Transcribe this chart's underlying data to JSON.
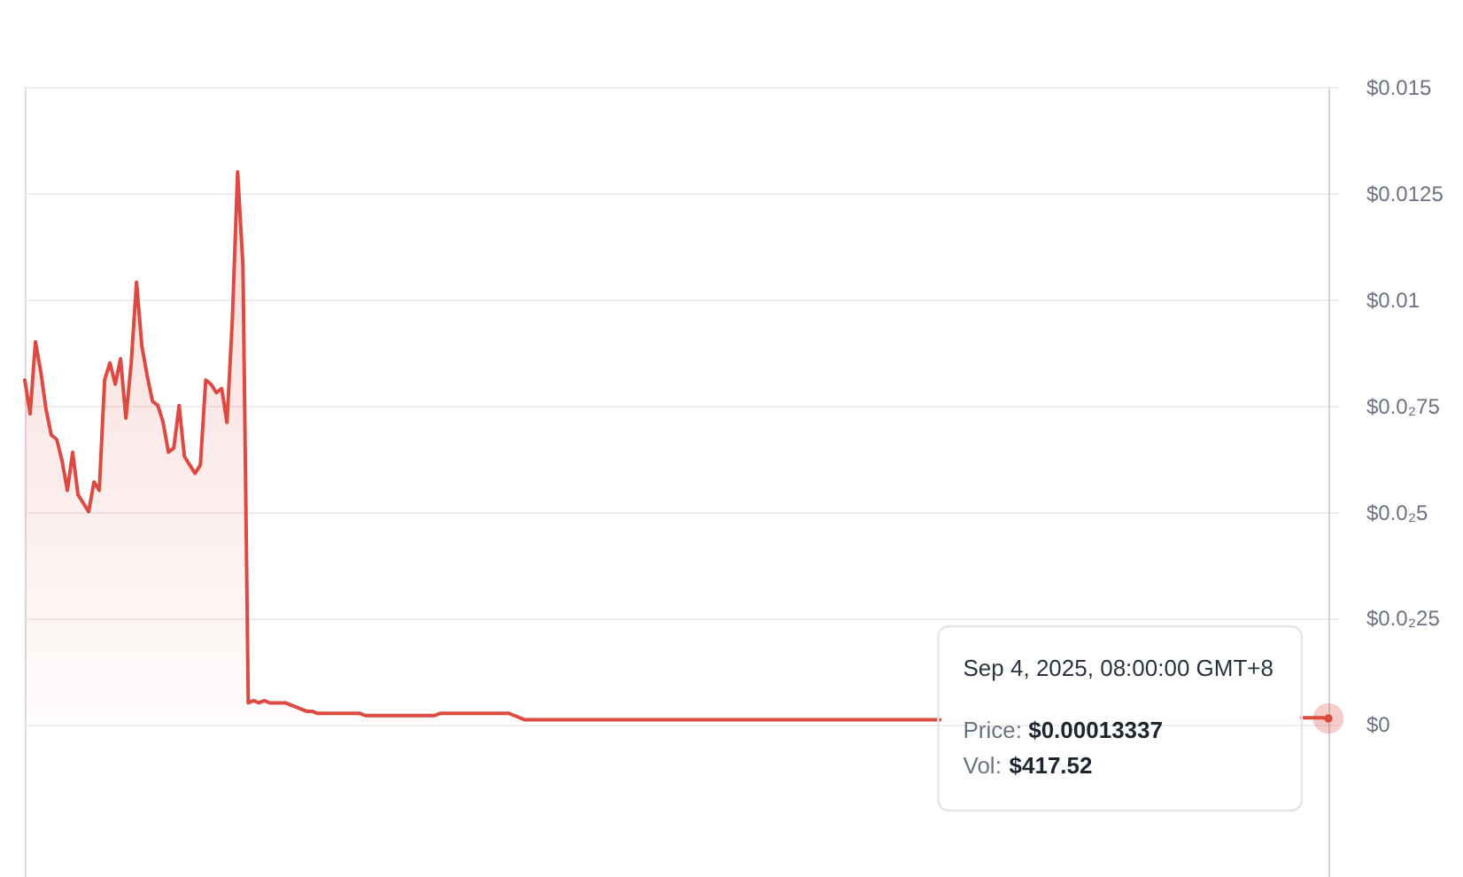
{
  "chart_data": {
    "type": "area",
    "categories": [
      null,
      null,
      null,
      null,
      null,
      null,
      null,
      null,
      null,
      null,
      null,
      null,
      null,
      null,
      null,
      null,
      null,
      null,
      null,
      null,
      null,
      null,
      null,
      null,
      null,
      null,
      null,
      null,
      null,
      null,
      null,
      null,
      null,
      null,
      null,
      null,
      null,
      null,
      null,
      null,
      null,
      null,
      null,
      null,
      null,
      null,
      null,
      null,
      null,
      null,
      null,
      null,
      null,
      null,
      null,
      null,
      null,
      null,
      null,
      null,
      null,
      null,
      null,
      null,
      null,
      null,
      null,
      null,
      null,
      null,
      null,
      null,
      null,
      null,
      null,
      null,
      null,
      null,
      null,
      null,
      null,
      null,
      null,
      null,
      null,
      null,
      null,
      null,
      null,
      null,
      null,
      null,
      null,
      null,
      null,
      null,
      null,
      null,
      null,
      null,
      null,
      null,
      null,
      null,
      null,
      null,
      null,
      null,
      null,
      null,
      null,
      null,
      null,
      null,
      null,
      null,
      null,
      null,
      null,
      null,
      null,
      null,
      null,
      null,
      null,
      null,
      null,
      null,
      null,
      null,
      null,
      null,
      null,
      null,
      null,
      null,
      null,
      null,
      null,
      null,
      null,
      null,
      null,
      null,
      null,
      null,
      null,
      null,
      null,
      null,
      null,
      null,
      null,
      null,
      null,
      null,
      null,
      null,
      null,
      null,
      null,
      null,
      null,
      null,
      null,
      null,
      null,
      null,
      null,
      null,
      null,
      null,
      null,
      null,
      null,
      null,
      null,
      null,
      null,
      null,
      null,
      null,
      null,
      null,
      null,
      null,
      null,
      null,
      null,
      null,
      null,
      null,
      null,
      null,
      null,
      null,
      null,
      null,
      null,
      null,
      null,
      null,
      null,
      null,
      null,
      null,
      null,
      null,
      null,
      null,
      null,
      null,
      null,
      null,
      null,
      null,
      null,
      null,
      null,
      null,
      null,
      null,
      null,
      null,
      null,
      null,
      null,
      null,
      null,
      null,
      null,
      null,
      null,
      null,
      null,
      null,
      null,
      null,
      null,
      null,
      null,
      null,
      null,
      null,
      null,
      null
    ],
    "values": [
      0.0081,
      0.0073,
      0.009,
      0.0083,
      0.0074,
      0.0068,
      0.0067,
      0.0062,
      0.0055,
      0.0064,
      0.0054,
      0.0052,
      0.005,
      0.0057,
      0.0055,
      0.0081,
      0.0085,
      0.008,
      0.0086,
      0.0072,
      0.0085,
      0.0104,
      0.0089,
      0.0082,
      0.0076,
      0.0075,
      0.0071,
      0.0064,
      0.0065,
      0.0075,
      0.0063,
      0.0061,
      0.0059,
      0.0061,
      0.0081,
      0.008,
      0.0078,
      0.0079,
      0.0071,
      0.0095,
      0.013,
      0.0108,
      0.0005,
      0.00055,
      0.0005,
      0.00055,
      0.0005,
      0.0005,
      0.0005,
      0.0005,
      0.00045,
      0.0004,
      0.00035,
      0.0003,
      0.0003,
      0.00025,
      0.00025,
      0.00025,
      0.00025,
      0.00025,
      0.00025,
      0.00025,
      0.00025,
      0.00025,
      0.0002,
      0.0002,
      0.0002,
      0.0002,
      0.0002,
      0.0002,
      0.0002,
      0.0002,
      0.0002,
      0.0002,
      0.0002,
      0.0002,
      0.0002,
      0.0002,
      0.00025,
      0.00025,
      0.00025,
      0.00025,
      0.00025,
      0.00025,
      0.00025,
      0.00025,
      0.00025,
      0.00025,
      0.00025,
      0.00025,
      0.00025,
      0.00025,
      0.0002,
      0.00015,
      0.0001,
      0.0001,
      0.0001,
      0.0001,
      0.0001,
      0.0001,
      0.0001,
      0.0001,
      0.0001,
      0.0001,
      0.0001,
      0.0001,
      0.0001,
      0.0001,
      0.0001,
      0.0001,
      0.0001,
      0.0001,
      0.0001,
      0.0001,
      0.0001,
      0.0001,
      0.0001,
      0.0001,
      0.0001,
      0.0001,
      0.0001,
      0.0001,
      0.0001,
      0.0001,
      0.0001,
      0.0001,
      0.0001,
      0.0001,
      0.0001,
      0.0001,
      0.0001,
      0.0001,
      0.0001,
      0.0001,
      0.0001,
      0.0001,
      0.0001,
      0.0001,
      0.0001,
      0.0001,
      0.0001,
      0.0001,
      0.0001,
      0.0001,
      0.0001,
      0.0001,
      0.0001,
      0.0001,
      0.0001,
      0.0001,
      0.0001,
      0.0001,
      0.0001,
      0.0001,
      0.0001,
      0.0001,
      0.0001,
      0.0001,
      0.0001,
      0.0001,
      0.0001,
      0.0001,
      0.0001,
      0.0001,
      0.0001,
      0.0001,
      0.0001,
      0.0001,
      0.0001,
      0.0001,
      0.0001,
      0.0001,
      0.0001,
      null,
      null,
      null,
      null,
      null,
      null,
      null,
      null,
      null,
      null,
      null,
      null,
      null,
      null,
      null,
      null,
      null,
      null,
      null,
      null,
      null,
      null,
      null,
      null,
      null,
      null,
      null,
      null,
      null,
      null,
      null,
      null,
      null,
      null,
      null,
      null,
      null,
      null,
      null,
      null,
      null,
      null,
      null,
      null,
      null,
      null,
      null,
      null,
      null,
      null,
      null,
      null,
      null,
      null,
      null,
      null,
      null,
      null,
      null,
      null,
      null,
      null,
      null,
      null,
      null,
      null,
      null,
      0.00015,
      0.00015,
      0.00015,
      0.00015,
      0.00015,
      0.00013337
    ],
    "color": "#dc4a41",
    "ylim": [
      -0.0036,
      0.015
    ],
    "yticks": [
      {
        "value": 0,
        "label": "$0"
      },
      {
        "value": 0.0025,
        "label": "$0.0₂25"
      },
      {
        "value": 0.005,
        "label": "$0.0₂5"
      },
      {
        "value": 0.0075,
        "label": "$0.0₂75"
      },
      {
        "value": 0.01,
        "label": "$0.01"
      },
      {
        "value": 0.0125,
        "label": "$0.0125"
      },
      {
        "value": 0.015,
        "label": "$0.015"
      }
    ],
    "grid": "y",
    "line_style": "solid",
    "annotations": [
      "Sep 4, 2025, 08:00:00 GMT+8",
      {
        "text": "Price: $0.00013337",
        "y": 0.00013337
      },
      "Vol: $417.52"
    ]
  }
}
